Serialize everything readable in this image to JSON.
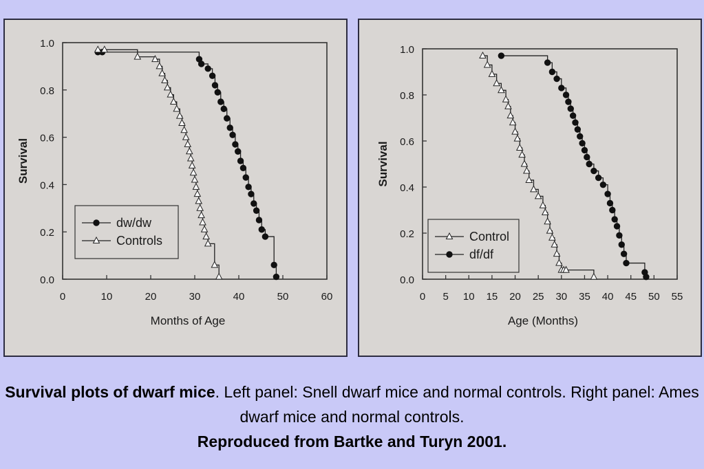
{
  "caption": {
    "bold_title": "Survival plots of dwarf mice",
    "text": ". Left panel: Snell dwarf mice and normal controls. Right panel: Ames dwarf mice and normal controls.",
    "reference": "Reproduced from Bartke and Turyn 2001."
  },
  "chart_data": [
    {
      "type": "line",
      "xlabel": "Months of Age",
      "ylabel": "Survival",
      "xlim": [
        0,
        60
      ],
      "ylim": [
        0,
        1.0
      ],
      "xticks": [
        "0",
        "10",
        "20",
        "30",
        "40",
        "50",
        "60"
      ],
      "yticks": [
        "0.0",
        "0.2",
        "0.4",
        "0.6",
        "0.8",
        "1.0"
      ],
      "legend_position": "lower-left",
      "series": [
        {
          "name": "dw/dw",
          "marker": "filled-circle",
          "x": [
            8,
            9,
            31,
            31.5,
            33,
            34,
            34.6,
            35.2,
            35.9,
            36.6,
            37.3,
            38,
            38.6,
            39.2,
            39.8,
            40.4,
            41,
            41.6,
            42.2,
            42.8,
            43.4,
            44,
            44.6,
            45.2,
            46,
            48,
            48.5
          ],
          "y": [
            0.96,
            0.96,
            0.93,
            0.91,
            0.89,
            0.86,
            0.82,
            0.79,
            0.75,
            0.72,
            0.68,
            0.64,
            0.61,
            0.57,
            0.54,
            0.5,
            0.47,
            0.43,
            0.39,
            0.36,
            0.32,
            0.29,
            0.25,
            0.21,
            0.18,
            0.06,
            0.01
          ]
        },
        {
          "name": "Controls",
          "marker": "open-triangle",
          "x": [
            8,
            9.5,
            17,
            21,
            22,
            22.6,
            23.2,
            23.8,
            24.5,
            25.2,
            25.9,
            26.6,
            27.1,
            27.6,
            28,
            28.4,
            28.8,
            29.1,
            29.4,
            29.7,
            30,
            30.3,
            30.6,
            30.9,
            31.2,
            31.5,
            31.8,
            32.2,
            32.6,
            33,
            34.5,
            35.5
          ],
          "y": [
            0.97,
            0.97,
            0.94,
            0.93,
            0.9,
            0.87,
            0.84,
            0.81,
            0.78,
            0.75,
            0.72,
            0.69,
            0.66,
            0.63,
            0.6,
            0.57,
            0.54,
            0.51,
            0.48,
            0.45,
            0.42,
            0.39,
            0.36,
            0.33,
            0.3,
            0.27,
            0.24,
            0.21,
            0.18,
            0.15,
            0.06,
            0.01
          ]
        }
      ]
    },
    {
      "type": "line",
      "xlabel": "Age (Months)",
      "ylabel": "Survival",
      "xlim": [
        0,
        55
      ],
      "ylim": [
        0,
        1.0
      ],
      "xticks": [
        "0",
        "5",
        "10",
        "15",
        "20",
        "25",
        "30",
        "35",
        "40",
        "45",
        "50",
        "55"
      ],
      "yticks": [
        "0.0",
        "0.2",
        "0.4",
        "0.6",
        "0.8",
        "1.0"
      ],
      "legend_position": "lower-left",
      "series": [
        {
          "name": "Control",
          "marker": "open-triangle",
          "x": [
            13,
            14,
            15,
            16,
            17,
            18,
            18.5,
            19,
            19.5,
            20,
            20.5,
            21,
            21.5,
            22,
            22.5,
            23,
            24,
            25,
            26,
            26.5,
            27,
            27.5,
            28,
            28.5,
            29,
            29.5,
            30,
            30.5,
            31,
            37
          ],
          "y": [
            0.97,
            0.93,
            0.89,
            0.85,
            0.82,
            0.78,
            0.75,
            0.71,
            0.68,
            0.64,
            0.61,
            0.57,
            0.54,
            0.5,
            0.47,
            0.43,
            0.39,
            0.36,
            0.32,
            0.29,
            0.25,
            0.21,
            0.18,
            0.15,
            0.11,
            0.07,
            0.04,
            0.04,
            0.04,
            0.01
          ]
        },
        {
          "name": "df/df",
          "marker": "filled-circle",
          "x": [
            17,
            27,
            28,
            29,
            30,
            31,
            31.5,
            32,
            32.5,
            33,
            33.5,
            34,
            34.5,
            35,
            35.5,
            36,
            37,
            38,
            39,
            40,
            40.5,
            41,
            41.5,
            42,
            42.5,
            43,
            43.5,
            44,
            48,
            48.3
          ],
          "y": [
            0.97,
            0.94,
            0.9,
            0.87,
            0.83,
            0.8,
            0.77,
            0.74,
            0.71,
            0.68,
            0.65,
            0.62,
            0.59,
            0.56,
            0.53,
            0.5,
            0.47,
            0.44,
            0.41,
            0.37,
            0.33,
            0.3,
            0.26,
            0.23,
            0.19,
            0.15,
            0.11,
            0.07,
            0.03,
            0.01
          ]
        }
      ]
    }
  ]
}
